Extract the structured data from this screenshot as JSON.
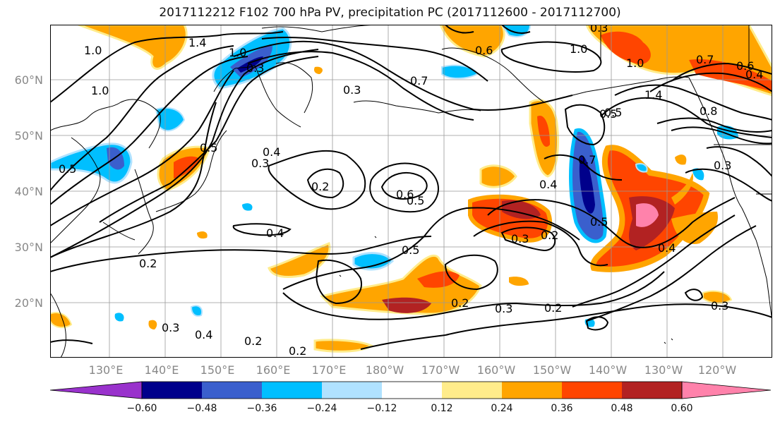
{
  "title": "2017112212 F102 700 hPa PV, precipitation PC (2017112600 - 2017112700)",
  "lat_ticks": [
    "60°N",
    "50°N",
    "40°N",
    "30°N",
    "20°N"
  ],
  "lon_ticks": [
    "130°E",
    "140°E",
    "150°E",
    "160°E",
    "170°E",
    "180°W",
    "170°W",
    "160°W",
    "150°W",
    "140°W",
    "130°W",
    "120°W"
  ],
  "colorbar": {
    "colors": [
      "#9932cc",
      "#00008b",
      "#3a5fcd",
      "#00bfff",
      "#b0e2ff",
      "#ffffff",
      "#ffec8b",
      "#ffa500",
      "#ff4500",
      "#b22222",
      "#ff82ab"
    ],
    "labels": [
      "−0.60",
      "−0.48",
      "−0.36",
      "−0.24",
      "−0.12",
      "0.12",
      "0.24",
      "0.36",
      "0.48",
      "0.60"
    ]
  },
  "contour_labels": [
    "1.4",
    "1.0",
    "1.0",
    "1.0",
    "0.5",
    "0.3",
    "0.3",
    "0.5",
    "0.4",
    "0.3",
    "0.2",
    "0.6",
    "0.5",
    "0.5",
    "0.4",
    "0.2",
    "0.2",
    "0.4",
    "0.2",
    "0.3",
    "0.7",
    "0.5",
    "0.7",
    "0.4",
    "0.3",
    "0.2",
    "0.3",
    "0.6",
    "1.0",
    "0.6",
    "0.5",
    "1.4",
    "0.8",
    "0.3",
    "1.0",
    "0.7",
    "0.3",
    "0.4",
    "0.3",
    "0.2",
    "0.4",
    "0.2",
    "0.5"
  ]
}
